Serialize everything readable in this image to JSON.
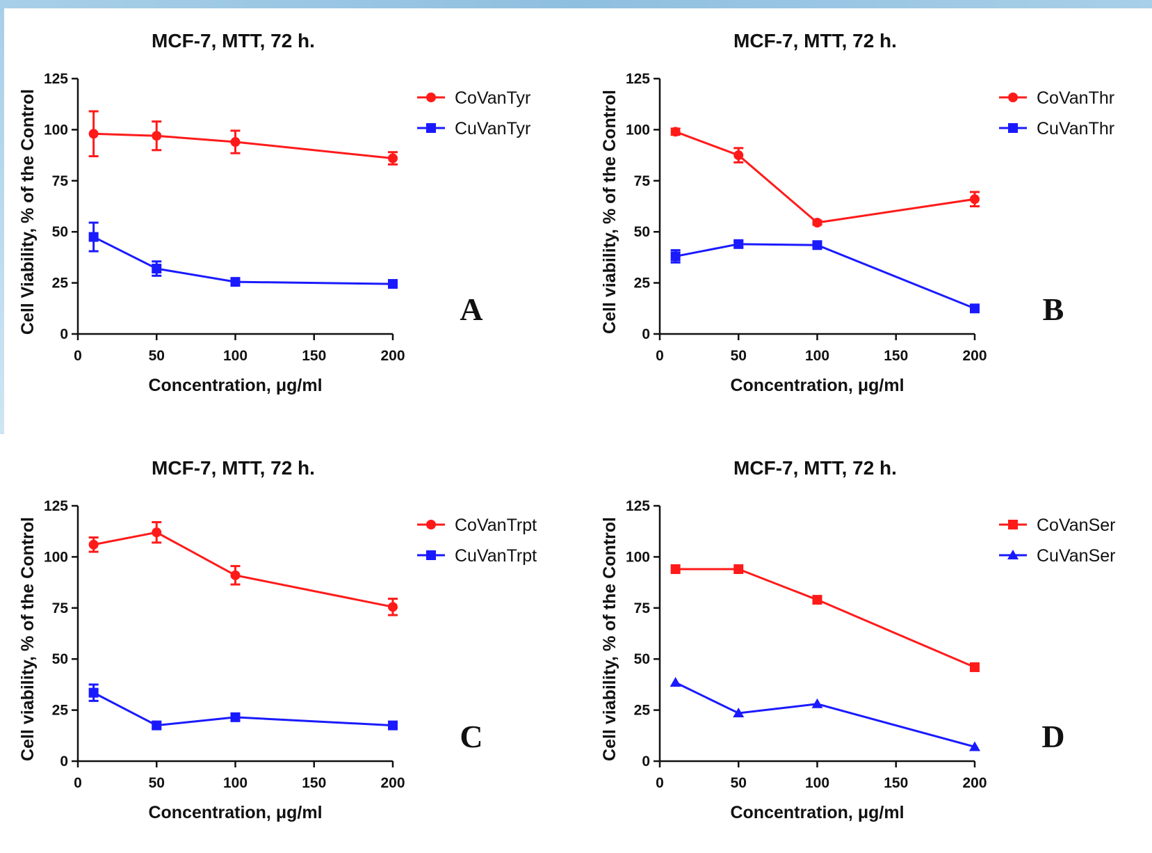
{
  "chart_data": [
    {
      "type": "line",
      "panel_letter": "A",
      "title": "MCF-7, MTT, 72 h.",
      "xlabel": "Concentration, μg/ml",
      "ylabel": "Cell Viability, % of the Control",
      "xlim": [
        0,
        200
      ],
      "ylim": [
        0,
        125
      ],
      "xticks": [
        0,
        50,
        100,
        150,
        200
      ],
      "yticks": [
        0,
        25,
        50,
        75,
        100,
        125
      ],
      "legend_position": "top-right",
      "series": [
        {
          "name": "CoVanTyr",
          "color": "#ff1a1a",
          "marker": "circle",
          "x": [
            10,
            50,
            100,
            200
          ],
          "y": [
            98,
            97,
            94,
            86
          ],
          "err": [
            11,
            7,
            5.5,
            3
          ]
        },
        {
          "name": "CuVanTyr",
          "color": "#1a1aff",
          "marker": "square",
          "x": [
            10,
            50,
            100,
            200
          ],
          "y": [
            47.5,
            32,
            25.5,
            24.5
          ],
          "err": [
            7,
            3.5,
            1.5,
            1.5
          ]
        }
      ]
    },
    {
      "type": "line",
      "panel_letter": "B",
      "title": "MCF-7, MTT, 72 h.",
      "xlabel": "Concentration, μg/ml",
      "ylabel": "Cell viability, % of the Control",
      "xlim": [
        0,
        200
      ],
      "ylim": [
        0,
        125
      ],
      "xticks": [
        0,
        50,
        100,
        150,
        200
      ],
      "yticks": [
        0,
        25,
        50,
        75,
        100,
        125
      ],
      "legend_position": "top-right",
      "series": [
        {
          "name": "CoVanThr",
          "color": "#ff1a1a",
          "marker": "circle",
          "x": [
            10,
            50,
            100,
            200
          ],
          "y": [
            99,
            87.5,
            54.5,
            66
          ],
          "err": [
            1.5,
            3.5,
            1,
            3.5
          ]
        },
        {
          "name": "CuVanThr",
          "color": "#1a1aff",
          "marker": "square",
          "x": [
            10,
            50,
            100,
            200
          ],
          "y": [
            38,
            44,
            43.5,
            12.5
          ],
          "err": [
            3,
            1.5,
            1.5,
            1.5
          ]
        }
      ]
    },
    {
      "type": "line",
      "panel_letter": "C",
      "title": "MCF-7, MTT, 72 h.",
      "xlabel": "Concentration, μg/ml",
      "ylabel": "Cell viability, % of the Control",
      "xlim": [
        0,
        200
      ],
      "ylim": [
        0,
        125
      ],
      "xticks": [
        0,
        50,
        100,
        150,
        200
      ],
      "yticks": [
        0,
        25,
        50,
        75,
        100,
        125
      ],
      "legend_position": "top-right",
      "series": [
        {
          "name": "CoVanTrpt",
          "color": "#ff1a1a",
          "marker": "circle",
          "x": [
            10,
            50,
            100,
            200
          ],
          "y": [
            106,
            112,
            91,
            75.5
          ],
          "err": [
            3.5,
            5,
            4.5,
            4
          ]
        },
        {
          "name": "CuVanTrpt",
          "color": "#1a1aff",
          "marker": "square",
          "x": [
            10,
            50,
            100,
            200
          ],
          "y": [
            33.5,
            17.5,
            21.5,
            17.5
          ],
          "err": [
            4,
            1.5,
            1.5,
            1.5
          ]
        }
      ]
    },
    {
      "type": "line",
      "panel_letter": "D",
      "title": "MCF-7, MTT, 72 h.",
      "xlabel": "Concentration, μg/ml",
      "ylabel": "Cell viability, % of the Control",
      "xlim": [
        0,
        200
      ],
      "ylim": [
        0,
        125
      ],
      "xticks": [
        0,
        50,
        100,
        150,
        200
      ],
      "yticks": [
        0,
        25,
        50,
        75,
        100,
        125
      ],
      "legend_position": "top-right",
      "series": [
        {
          "name": "CoVanSer",
          "color": "#ff1a1a",
          "marker": "square",
          "x": [
            10,
            50,
            100,
            200
          ],
          "y": [
            94,
            94,
            79,
            46
          ],
          "err": [
            0,
            0,
            0,
            0
          ]
        },
        {
          "name": "CuVanSer",
          "color": "#1a1aff",
          "marker": "triangle",
          "x": [
            10,
            50,
            100,
            200
          ],
          "y": [
            38.5,
            23.5,
            28,
            7
          ],
          "err": [
            0,
            0,
            0,
            0
          ]
        }
      ]
    }
  ]
}
